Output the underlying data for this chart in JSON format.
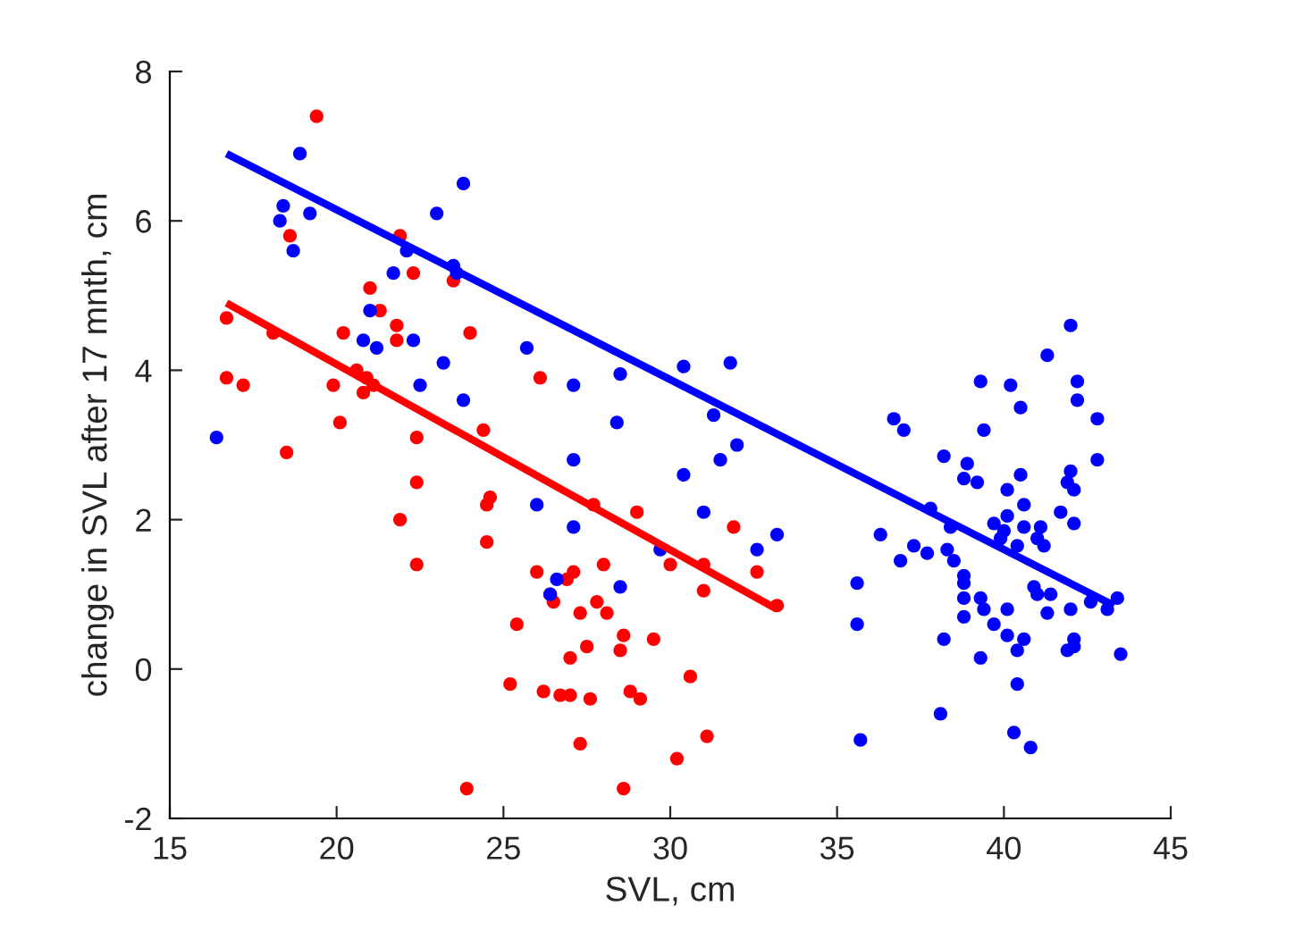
{
  "chart_data": {
    "type": "scatter",
    "xlabel": "SVL, cm",
    "ylabel": "change in SVL after 17 mnth, cm",
    "xlim": [
      15,
      45
    ],
    "xticks": [
      15,
      20,
      25,
      30,
      35,
      40,
      45
    ],
    "ylim": [
      -2,
      8
    ],
    "yticks": [
      -2,
      0,
      2,
      4,
      6,
      8
    ],
    "grid": false,
    "marker": "circle",
    "series": [
      {
        "color": "#ff0000",
        "x": [
          16.7,
          16.7,
          17.2,
          18.1,
          18.5,
          18.6,
          19.4,
          19.9,
          20.1,
          20.2,
          20.6,
          20.8,
          20.9,
          21.0,
          21.1,
          21.3,
          21.8,
          21.8,
          21.9,
          21.9,
          22.3,
          22.4,
          22.4,
          22.4,
          23.5,
          23.9,
          24.0,
          24.4,
          24.5,
          24.5,
          24.6,
          25.2,
          25.4,
          26.0,
          26.1,
          26.2,
          26.4,
          26.5,
          26.7,
          26.9,
          27.0,
          27.0,
          27.1,
          27.3,
          27.3,
          27.5,
          27.6,
          27.7,
          27.8,
          28.0,
          28.1,
          28.5,
          28.6,
          28.6,
          28.8,
          29.0,
          29.1,
          29.5,
          30.0,
          30.2,
          30.6,
          31.0,
          31.0,
          31.1,
          31.9,
          32.6,
          33.2
        ],
        "values": [
          4.7,
          3.9,
          3.8,
          4.5,
          2.9,
          5.8,
          7.4,
          3.8,
          3.3,
          4.5,
          4.0,
          3.7,
          3.9,
          5.1,
          3.8,
          4.8,
          4.4,
          4.6,
          5.8,
          2.0,
          5.3,
          3.1,
          2.5,
          1.4,
          5.2,
          -1.6,
          4.5,
          3.2,
          2.2,
          1.7,
          2.3,
          -0.2,
          0.6,
          1.3,
          3.9,
          -0.3,
          1.0,
          0.9,
          -0.35,
          1.2,
          -0.35,
          0.15,
          1.3,
          -1.0,
          0.75,
          0.3,
          -0.4,
          2.2,
          0.9,
          1.4,
          0.75,
          0.25,
          0.45,
          -1.6,
          -0.3,
          2.1,
          -0.4,
          0.4,
          1.4,
          -1.2,
          -0.1,
          1.05,
          1.4,
          -0.9,
          1.9,
          1.3,
          0.85
        ]
      },
      {
        "color": "#0000ff",
        "x": [
          16.4,
          18.3,
          18.4,
          18.7,
          18.9,
          19.2,
          20.8,
          21.0,
          21.2,
          21.7,
          22.1,
          22.3,
          22.5,
          23.0,
          23.2,
          23.5,
          23.6,
          23.8,
          23.8,
          25.7,
          26.0,
          26.4,
          26.6,
          27.1,
          27.1,
          27.1,
          28.4,
          28.5,
          28.5,
          29.7,
          30.4,
          30.4,
          31.0,
          31.3,
          31.5,
          31.8,
          32.0,
          32.6,
          33.2,
          42.0,
          41.3,
          39.3,
          40.2,
          40.5,
          42.2,
          42.2,
          42.8,
          36.7,
          37.0,
          39.4,
          38.2,
          38.9,
          38.8,
          39.2,
          40.5,
          40.1,
          42.8,
          42.0,
          41.9,
          42.1,
          40.6,
          41.7,
          42.1,
          37.8,
          38.4,
          39.7,
          40.1,
          40.0,
          39.9,
          40.6,
          41.1,
          41.0,
          41.2,
          40.4,
          36.3,
          37.3,
          36.9,
          37.7,
          38.3,
          38.5,
          35.6,
          38.8,
          38.8,
          38.8,
          39.3,
          39.4,
          40.1,
          38.8,
          39.7,
          40.9,
          41.0,
          41.4,
          41.3,
          42.0,
          42.6,
          43.1,
          43.4,
          35.6,
          38.2,
          39.3,
          40.1,
          40.6,
          40.4,
          42.1,
          42.1,
          41.9,
          43.5,
          40.4,
          38.1,
          40.3,
          40.8,
          35.7
        ],
        "values": [
          3.1,
          6.0,
          6.2,
          5.6,
          6.9,
          6.1,
          4.4,
          4.8,
          4.3,
          5.3,
          5.6,
          4.4,
          3.8,
          6.1,
          4.1,
          5.4,
          5.3,
          3.6,
          6.5,
          4.3,
          2.2,
          1.0,
          1.2,
          3.8,
          2.8,
          1.9,
          3.3,
          3.95,
          1.1,
          1.6,
          2.6,
          4.05,
          2.1,
          3.4,
          2.8,
          4.1,
          3.0,
          1.6,
          1.8,
          4.6,
          4.2,
          3.85,
          3.8,
          3.5,
          3.85,
          3.6,
          3.35,
          3.35,
          3.2,
          3.2,
          2.85,
          2.75,
          2.55,
          2.5,
          2.6,
          2.4,
          2.8,
          2.65,
          2.5,
          2.4,
          2.2,
          2.1,
          1.95,
          2.15,
          1.9,
          1.95,
          2.05,
          1.85,
          1.75,
          1.9,
          1.9,
          1.75,
          1.65,
          1.65,
          1.8,
          1.65,
          1.45,
          1.55,
          1.6,
          1.45,
          1.15,
          1.25,
          1.15,
          0.95,
          0.95,
          0.8,
          0.8,
          0.7,
          0.6,
          1.1,
          1.0,
          1.0,
          0.75,
          0.8,
          0.9,
          0.8,
          0.95,
          0.6,
          0.4,
          0.15,
          0.45,
          0.4,
          0.25,
          0.4,
          0.3,
          0.25,
          0.2,
          -0.2,
          -0.6,
          -0.85,
          -1.05,
          -0.95
        ]
      },
      {
        "type": "line",
        "marker": "none",
        "color": "#0000ff",
        "x": [
          16.7,
          43.3
        ],
        "values": [
          6.9,
          0.85
        ]
      },
      {
        "type": "line",
        "marker": "none",
        "color": "#ff0000",
        "x": [
          16.7,
          33.2
        ],
        "values": [
          4.9,
          0.8
        ]
      }
    ]
  }
}
